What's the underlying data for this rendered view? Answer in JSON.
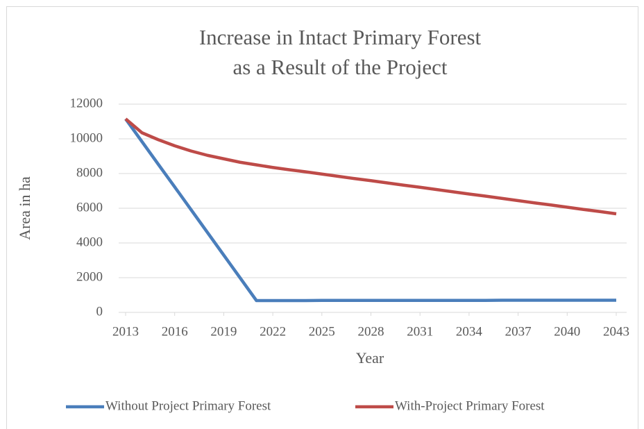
{
  "chart_data": {
    "type": "line",
    "title": [
      "Increase in Intact Primary Forest",
      "as a Result of the Project"
    ],
    "x_label": "Year",
    "y_label": "Area in ha",
    "x": [
      2013,
      2014,
      2015,
      2016,
      2017,
      2018,
      2019,
      2020,
      2021,
      2022,
      2023,
      2024,
      2025,
      2026,
      2027,
      2028,
      2029,
      2030,
      2031,
      2032,
      2033,
      2034,
      2035,
      2036,
      2037,
      2038,
      2039,
      2040,
      2041,
      2042,
      2043
    ],
    "series": [
      {
        "name": "Without Project Primary Forest",
        "color": "#4a7ebb",
        "values": [
          11150,
          9840,
          8530,
          7230,
          5920,
          4610,
          3300,
          1990,
          680,
          680,
          680,
          680,
          690,
          690,
          690,
          690,
          690,
          690,
          690,
          690,
          690,
          690,
          690,
          700,
          700,
          700,
          700,
          700,
          700,
          700,
          700
        ]
      },
      {
        "name": "With-Project Primary Forest",
        "color": "#be4b48",
        "values": [
          11150,
          10350,
          9950,
          9600,
          9300,
          9050,
          8850,
          8650,
          8500,
          8350,
          8220,
          8100,
          7970,
          7840,
          7710,
          7590,
          7460,
          7330,
          7210,
          7080,
          6950,
          6820,
          6700,
          6570,
          6440,
          6310,
          6190,
          6060,
          5930,
          5810,
          5680
        ]
      }
    ],
    "xlim": [
      2013,
      2043
    ],
    "xticks": [
      2013,
      2016,
      2019,
      2022,
      2025,
      2028,
      2031,
      2034,
      2037,
      2040,
      2043
    ],
    "ylim": [
      0,
      12000
    ],
    "yticks": [
      0,
      2000,
      4000,
      6000,
      8000,
      10000,
      12000
    ],
    "grid": true,
    "legend": "bottom"
  }
}
